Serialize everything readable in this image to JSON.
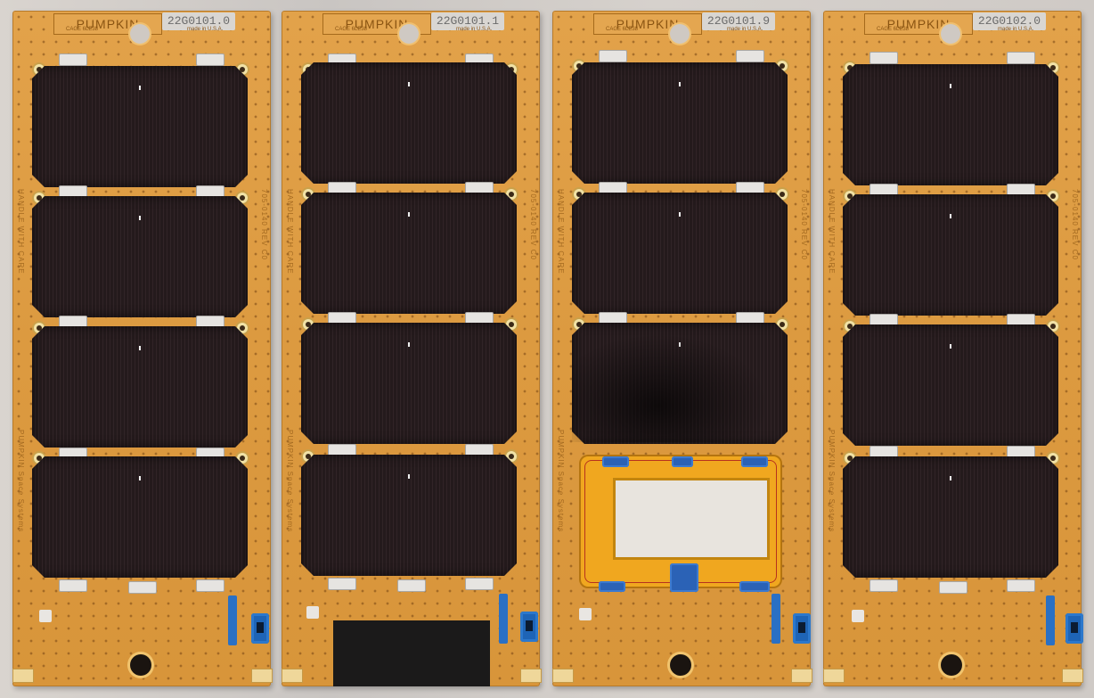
{
  "image": {
    "subject": "Four satellite solar panels",
    "background_color": "#d2cdc8",
    "board_color": "#dc9a40",
    "cell_color": "#2a1f21"
  },
  "panels": [
    {
      "brand": "PUMPKIN",
      "serial": "22G0101.0",
      "top_note_left": "CAGE 6LE38",
      "top_note_right": "made in U.S.A.",
      "side_text_left": "HANDLE WITH CARE",
      "side_text_right": "705-0140 REV C0",
      "bottom_text": "PUMPKIN Space Systems",
      "variant": "standard"
    },
    {
      "brand": "PUMPKIN",
      "serial": "22G0101.1",
      "top_note_left": "CAGE 6LE38",
      "top_note_right": "made in U.S.A.",
      "side_text_left": "HANDLE WITH CARE",
      "side_text_right": "705-0140 REV C0",
      "bottom_text": "PUMPKIN Space Systems",
      "variant": "cutout"
    },
    {
      "brand": "PUMPKIN",
      "serial": "22G0101.9",
      "top_note_left": "CAGE 6LE38",
      "top_note_right": "made in U.S.A.",
      "side_text_left": "HANDLE WITH CARE",
      "side_text_right": "705-0140 REV C0",
      "bottom_text": "PUMPKIN Space Systems",
      "variant": "window"
    },
    {
      "brand": "PUMPKIN",
      "serial": "22G0102.0",
      "top_note_left": "CAGE 6LE38",
      "top_note_right": "made in U.S.A.",
      "side_text_left": "HANDLE WITH CARE",
      "side_text_right": "705-0140 REV C0",
      "bottom_text": "PUMPKIN Space Systems",
      "variant": "standard"
    }
  ]
}
